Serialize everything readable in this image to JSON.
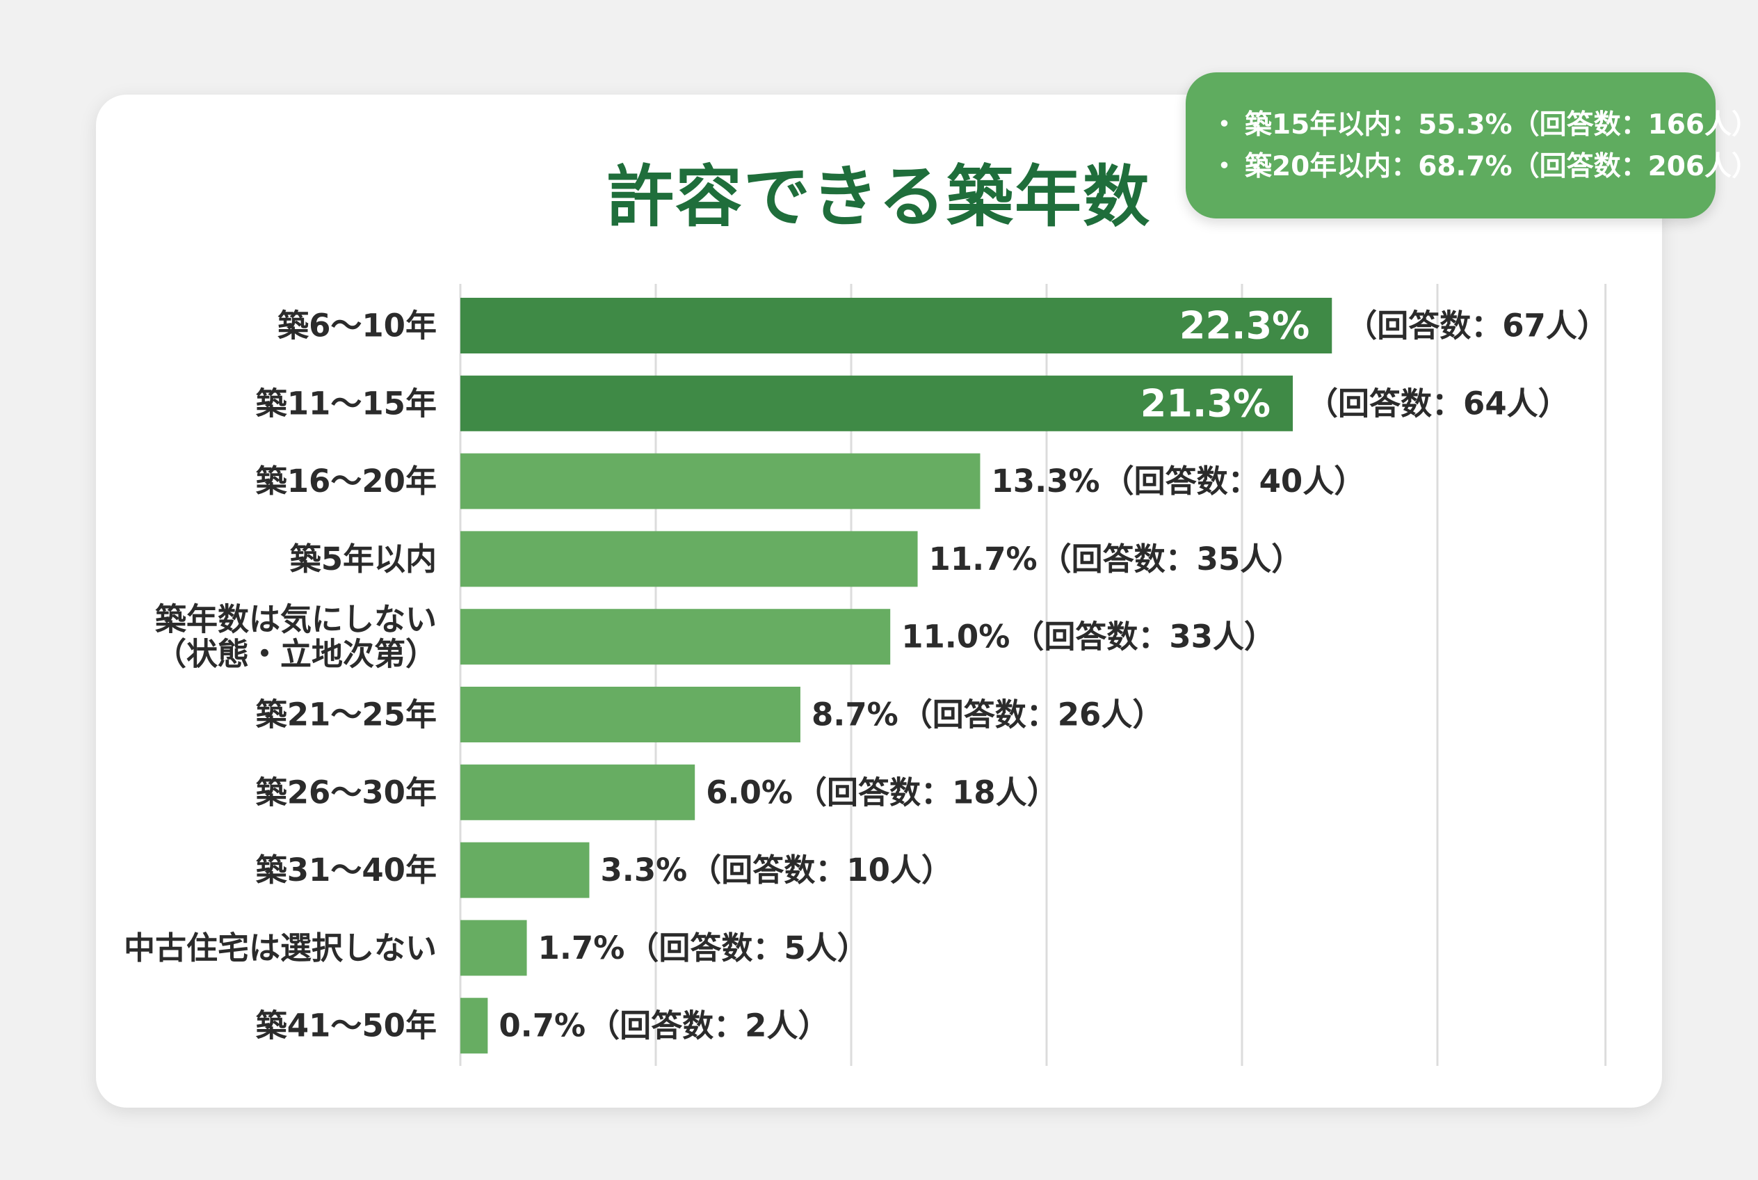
{
  "title": "許容できる築年数",
  "callout": {
    "lines": [
      "築15年以内：55.3%（回答数：166人）",
      "築20年以内：68.7%（回答数：206人）"
    ]
  },
  "colors": {
    "dark_bar": "#3f8a46",
    "light_bar": "#67ad62",
    "title": "#1f6e3b",
    "label": "#2b2b2b",
    "grid": "#dcdcdc"
  },
  "chart_data": {
    "type": "bar",
    "orientation": "horizontal",
    "title": "許容できる築年数",
    "categories": [
      [
        "築6〜10年"
      ],
      [
        "築11〜15年"
      ],
      [
        "築16〜20年"
      ],
      [
        "築5年以内"
      ],
      [
        "築年数は気にしない",
        "（状態・立地次第）"
      ],
      [
        "築21〜25年"
      ],
      [
        "築26〜30年"
      ],
      [
        "築31〜40年"
      ],
      [
        "中古住宅は選択しない"
      ],
      [
        "築41〜50年"
      ]
    ],
    "values": [
      22.3,
      21.3,
      13.3,
      11.7,
      11.0,
      8.7,
      6.0,
      3.3,
      1.7,
      0.7
    ],
    "value_labels": [
      "22.3%",
      "21.3%",
      "13.3%",
      "11.7%",
      "11.0%",
      "8.7%",
      "6.0%",
      "3.3%",
      "1.7%",
      "0.7%"
    ],
    "count_labels": [
      "（回答数：67人）",
      "（回答数：64人）",
      "（回答数：40人）",
      "（回答数：35人）",
      "（回答数：33人）",
      "（回答数：26人）",
      "（回答数：18人）",
      "（回答数：10人）",
      "（回答数：5人）",
      "（回答数：2人）"
    ],
    "highlighted": [
      true,
      true,
      false,
      false,
      false,
      false,
      false,
      false,
      false,
      false
    ],
    "xlim": [
      0,
      29.3
    ],
    "gridlines": [
      5,
      10,
      15,
      20,
      25,
      29.3
    ],
    "xlabel": "",
    "ylabel": ""
  }
}
